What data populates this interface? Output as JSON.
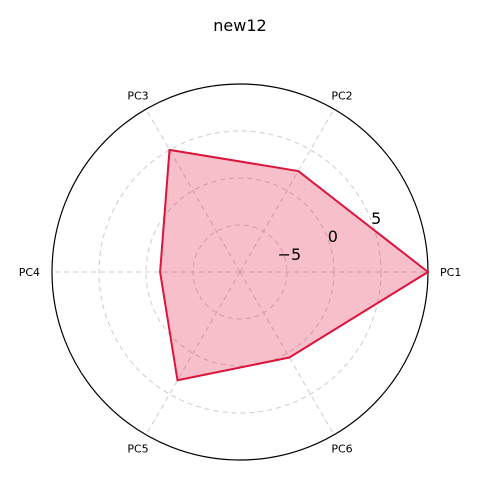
{
  "chart_data": {
    "type": "radar",
    "title": "new12",
    "categories": [
      "PC1",
      "PC2",
      "PC3",
      "PC4",
      "PC5",
      "PC6"
    ],
    "series": [
      {
        "name": "new12",
        "values": [
          10.0,
          2.4,
          5.0,
          -1.5,
          3.3,
          0.5
        ]
      }
    ],
    "rlim": [
      -10,
      10
    ],
    "r_ticks": [
      {
        "value": -5,
        "label": "−5"
      },
      {
        "value": 0,
        "label": "0"
      },
      {
        "value": 5,
        "label": "5"
      }
    ],
    "grid": true,
    "colors": {
      "line": "#dc143c",
      "fill": "#dc143c",
      "grid": "#cccccc",
      "frame": "#000000"
    }
  }
}
